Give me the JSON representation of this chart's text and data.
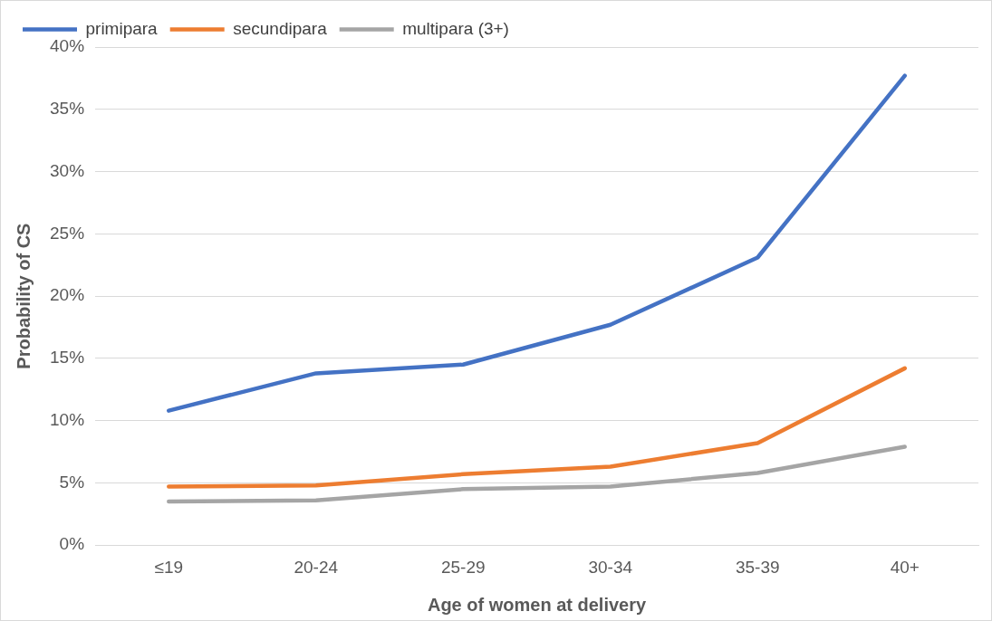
{
  "chart_data": {
    "type": "line",
    "xlabel": "Age of women at delivery",
    "ylabel": "Probability of CS",
    "categories": [
      "≤19",
      "20-24",
      "25-29",
      "30-34",
      "35-39",
      "40+"
    ],
    "series": [
      {
        "name": "primipara",
        "color": "#4472c4",
        "values": [
          10.8,
          13.8,
          14.5,
          17.7,
          23.1,
          37.7
        ]
      },
      {
        "name": "secundipara",
        "color": "#ed7d31",
        "values": [
          4.7,
          4.8,
          5.7,
          6.3,
          8.2,
          14.2
        ]
      },
      {
        "name": "multipara (3+)",
        "color": "#a5a5a5",
        "values": [
          3.5,
          3.6,
          4.5,
          4.7,
          5.8,
          7.9
        ]
      }
    ],
    "ylim": [
      0,
      40
    ],
    "yticks": [
      {
        "value": 0,
        "label": "0%"
      },
      {
        "value": 5,
        "label": "5%"
      },
      {
        "value": 10,
        "label": "10%"
      },
      {
        "value": 15,
        "label": "15%"
      },
      {
        "value": 20,
        "label": "20%"
      },
      {
        "value": 25,
        "label": "25%"
      },
      {
        "value": 30,
        "label": "30%"
      },
      {
        "value": 35,
        "label": "35%"
      },
      {
        "value": 40,
        "label": "40%"
      }
    ],
    "grid": "y",
    "legend": "top left",
    "marker": "none",
    "line_style": "solid"
  }
}
